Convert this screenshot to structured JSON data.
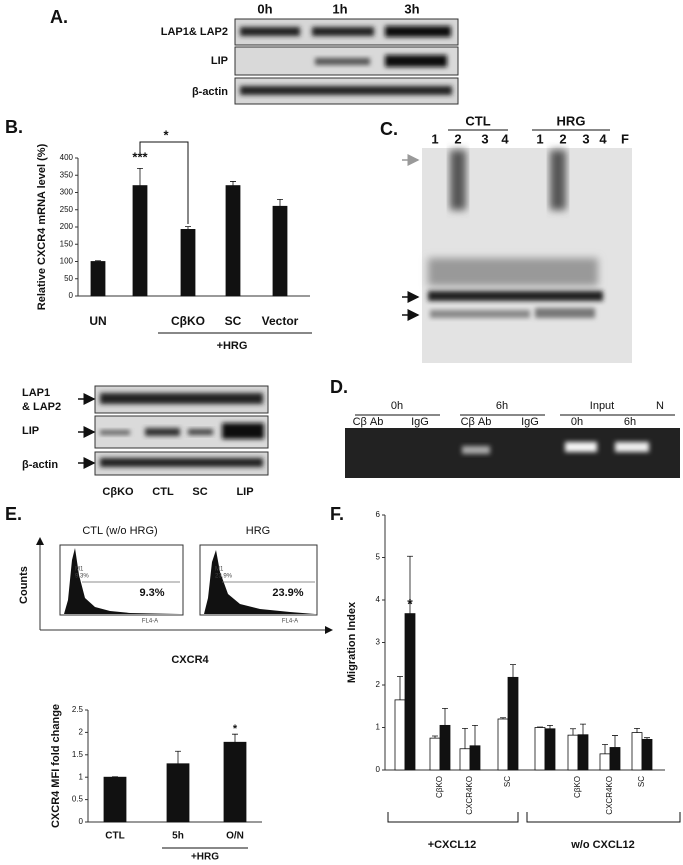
{
  "panel_labels": [
    "A.",
    "B.",
    "C.",
    "D.",
    "E.",
    "F."
  ],
  "blot_a": {
    "lanes": [
      "0h",
      "1h",
      "3h"
    ],
    "rows": [
      "LAP1& LAP2",
      "LIP",
      "β-actin"
    ]
  },
  "blot_b": {
    "lanes": [
      "CβKO",
      "CTL",
      "SC",
      "LIP"
    ],
    "rows": [
      "LAP1",
      "& LAP2",
      "LIP",
      "β-actin"
    ]
  },
  "gel_c": {
    "groups": [
      "CTL",
      "HRG"
    ],
    "lanes": [
      "1",
      "2",
      "3",
      "4",
      "1",
      "2",
      "3",
      "4",
      "F"
    ]
  },
  "gel_d": {
    "groups": [
      "0h",
      "6h",
      "Input",
      "N"
    ],
    "lanes": [
      "Cβ Ab",
      "IgG",
      "Cβ Ab",
      "IgG",
      "0h",
      "6h"
    ]
  },
  "flow_e": {
    "plots": [
      {
        "title": "CTL (w/o HRG)",
        "gate": "M1",
        "gate_percent": "9.3%",
        "percent": "9.3%",
        "x_axis": "FL4-A"
      },
      {
        "title": "HRG",
        "gate": "M1",
        "gate_percent": "23.9%",
        "percent": "23.9%",
        "x_axis": "FL4-A"
      }
    ],
    "ylabel": "Counts",
    "xlabel": "CXCR4"
  },
  "chart_data": [
    {
      "type": "bar",
      "ylabel": "Relative CXCR4 mRNA level (%)",
      "categories": [
        "UN",
        null,
        "CβKO",
        "SC",
        "Vector"
      ],
      "values": [
        100,
        320,
        193,
        320,
        260
      ],
      "errors": [
        2,
        50,
        8,
        12,
        20
      ],
      "color": "#111111",
      "ylim": [
        0,
        400
      ],
      "yticks": [
        0,
        50,
        100,
        150,
        200,
        250,
        300,
        350,
        400
      ],
      "annotations": [
        "***",
        "*"
      ],
      "group_label": "+HRG"
    },
    {
      "type": "bar",
      "ylabel": "CXCR4 MFI fold change",
      "categories": [
        "CTL",
        "5h",
        "O/N"
      ],
      "values": [
        1.0,
        1.3,
        1.78
      ],
      "errors": [
        0.01,
        0.28,
        0.18
      ],
      "color": "#111111",
      "ylim": [
        0,
        2.5
      ],
      "yticks": [
        0,
        0.5,
        1,
        1.5,
        2,
        2.5
      ],
      "annotations": [
        "*"
      ],
      "group_label": "+HRG"
    },
    {
      "type": "bar",
      "ylabel": "Migration Index",
      "categories": [
        null,
        "CβKO",
        "CXCR4KO",
        "SC",
        null,
        "CβKO",
        "CXCR4KO",
        "SC"
      ],
      "series": [
        {
          "color": "#ffffff",
          "values": [
            1.65,
            0.75,
            0.5,
            1.2,
            1.0,
            0.82,
            0.38,
            0.88
          ],
          "errors": [
            0.55,
            0.05,
            0.48,
            0.03,
            0.01,
            0.15,
            0.22,
            0.1
          ]
        },
        {
          "color": "#111111",
          "values": [
            3.68,
            1.05,
            0.57,
            2.18,
            0.97,
            0.83,
            0.53,
            0.72
          ],
          "errors": [
            1.35,
            0.4,
            0.48,
            0.3,
            0.08,
            0.25,
            0.28,
            0.04
          ]
        }
      ],
      "ylim": [
        0,
        6
      ],
      "yticks": [
        0,
        1,
        2,
        3,
        4,
        5,
        6
      ],
      "annotations": [
        "*"
      ],
      "groups": [
        "+CXCL12",
        "w/o CXCL12"
      ]
    }
  ]
}
